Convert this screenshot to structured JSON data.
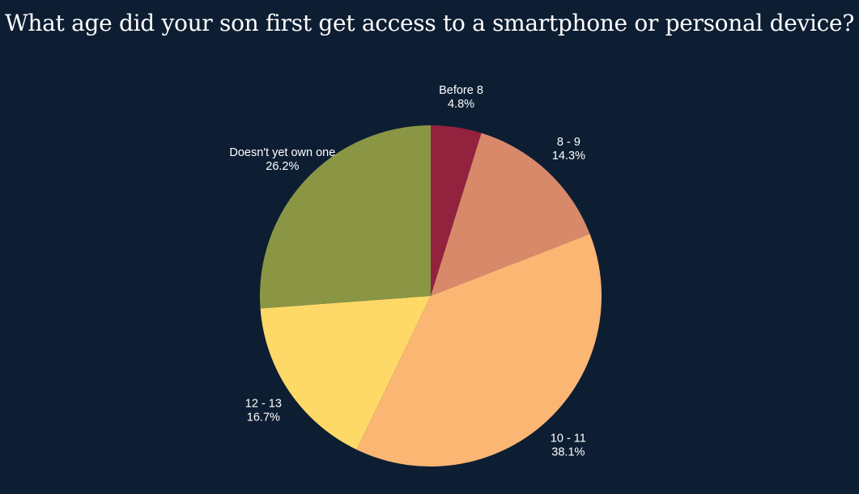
{
  "chart_data": {
    "type": "pie",
    "title": "What age did your son first get access to a smartphone or personal device?",
    "start_angle_deg": 0,
    "direction": "clockwise",
    "slices": [
      {
        "label": "Before 8",
        "value": 4.8,
        "percent_label": "4.8%",
        "color": "#92223e"
      },
      {
        "label": "8 - 9",
        "value": 14.3,
        "percent_label": "14.3%",
        "color": "#d8896a"
      },
      {
        "label": "10 - 11",
        "value": 38.1,
        "percent_label": "38.1%",
        "color": "#fbb673"
      },
      {
        "label": "12 - 13",
        "value": 16.7,
        "percent_label": "16.7%",
        "color": "#fed967"
      },
      {
        "label": "Doesn't yet own one",
        "value": 26.2,
        "percent_label": "26.2%",
        "color": "#8b9645"
      }
    ]
  },
  "colors": {
    "background": "#0d1e33",
    "text": "#ffffff"
  }
}
